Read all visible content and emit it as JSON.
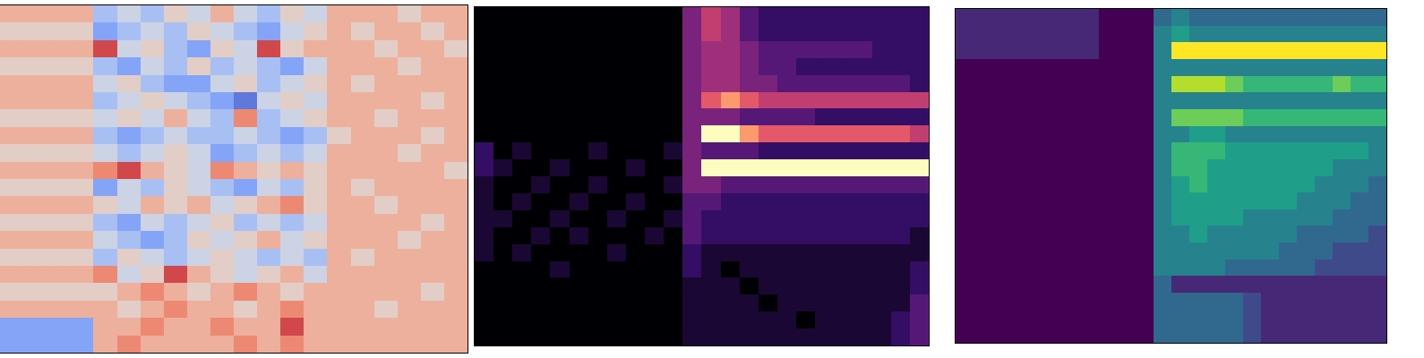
{
  "chart_data": [
    {
      "type": "heatmap",
      "color": "coolwarm",
      "grid": false,
      "tick_labels": false,
      "xlim": [
        -0.5,
        19.5
      ],
      "ylim": [
        19.5,
        -0.5
      ],
      "zlim": [
        0,
        9
      ],
      "z": [
        [
          6,
          6,
          6,
          6,
          3,
          4,
          3,
          5,
          4,
          6,
          4,
          3,
          5,
          4,
          6,
          6,
          6,
          5,
          6,
          6
        ],
        [
          5,
          5,
          5,
          5,
          2,
          3,
          4,
          3,
          5,
          4,
          3,
          2,
          4,
          5,
          6,
          5,
          6,
          6,
          5,
          6
        ],
        [
          6,
          6,
          6,
          6,
          8,
          4,
          5,
          3,
          2,
          5,
          4,
          8,
          5,
          6,
          6,
          6,
          5,
          6,
          6,
          5
        ],
        [
          5,
          5,
          5,
          5,
          3,
          2,
          4,
          3,
          5,
          3,
          4,
          3,
          2,
          4,
          6,
          6,
          6,
          5,
          6,
          6
        ],
        [
          6,
          6,
          6,
          6,
          4,
          5,
          3,
          2,
          2,
          4,
          5,
          3,
          4,
          5,
          6,
          5,
          6,
          6,
          6,
          6
        ],
        [
          6,
          6,
          6,
          6,
          3,
          4,
          5,
          4,
          3,
          2,
          1,
          4,
          5,
          4,
          6,
          6,
          6,
          6,
          5,
          6
        ],
        [
          5,
          5,
          5,
          5,
          4,
          5,
          4,
          6,
          4,
          3,
          7,
          3,
          4,
          5,
          6,
          6,
          5,
          6,
          6,
          6
        ],
        [
          6,
          6,
          6,
          6,
          3,
          2,
          3,
          4,
          3,
          3,
          4,
          3,
          2,
          3,
          5,
          6,
          6,
          6,
          5,
          6
        ],
        [
          5,
          5,
          5,
          5,
          4,
          3,
          4,
          5,
          4,
          2,
          3,
          4,
          3,
          4,
          6,
          6,
          6,
          5,
          6,
          6
        ],
        [
          6,
          6,
          6,
          6,
          7,
          8,
          6,
          5,
          4,
          7,
          6,
          5,
          6,
          5,
          6,
          6,
          6,
          6,
          6,
          5
        ],
        [
          5,
          5,
          5,
          5,
          2,
          4,
          3,
          5,
          4,
          3,
          2,
          4,
          3,
          5,
          6,
          5,
          6,
          6,
          6,
          6
        ],
        [
          6,
          6,
          6,
          6,
          5,
          4,
          6,
          5,
          6,
          4,
          5,
          6,
          7,
          5,
          6,
          6,
          5,
          6,
          6,
          6
        ],
        [
          5,
          5,
          5,
          5,
          3,
          2,
          4,
          3,
          4,
          5,
          3,
          4,
          3,
          4,
          6,
          6,
          6,
          6,
          5,
          6
        ],
        [
          6,
          6,
          6,
          6,
          4,
          3,
          2,
          3,
          5,
          4,
          5,
          6,
          4,
          5,
          6,
          6,
          6,
          5,
          6,
          6
        ],
        [
          5,
          5,
          5,
          5,
          3,
          5,
          4,
          3,
          4,
          5,
          4,
          3,
          4,
          3,
          6,
          5,
          6,
          6,
          6,
          6
        ],
        [
          6,
          6,
          6,
          6,
          7,
          4,
          5,
          8,
          6,
          5,
          4,
          5,
          6,
          4,
          6,
          6,
          6,
          6,
          6,
          6
        ],
        [
          5,
          5,
          5,
          5,
          5,
          6,
          7,
          6,
          5,
          6,
          7,
          6,
          5,
          6,
          6,
          6,
          6,
          6,
          5,
          6
        ],
        [
          6,
          6,
          6,
          6,
          6,
          5,
          6,
          7,
          6,
          6,
          5,
          6,
          7,
          6,
          6,
          6,
          5,
          6,
          6,
          6
        ],
        [
          2,
          2,
          2,
          2,
          6,
          6,
          7,
          6,
          6,
          7,
          6,
          6,
          8,
          6,
          6,
          6,
          6,
          6,
          6,
          6
        ],
        [
          2,
          2,
          2,
          2,
          6,
          7,
          6,
          6,
          6,
          6,
          7,
          6,
          7,
          6,
          6,
          6,
          6,
          6,
          6,
          6
        ]
      ]
    },
    {
      "type": "heatmap",
      "color": "magma",
      "grid": false,
      "tick_labels": false,
      "xlim": [
        -0.5,
        23.5
      ],
      "ylim": [
        19.5,
        -0.5
      ],
      "zlim": [
        0,
        9
      ],
      "z": [
        [
          0,
          0,
          0,
          0,
          0,
          0,
          0,
          0,
          0,
          0,
          0,
          4,
          6,
          5,
          3,
          2,
          2,
          2,
          2,
          2,
          2,
          2,
          2,
          2
        ],
        [
          0,
          0,
          0,
          0,
          0,
          0,
          0,
          0,
          0,
          0,
          0,
          4,
          6,
          5,
          3,
          2,
          2,
          2,
          2,
          2,
          2,
          2,
          2,
          2
        ],
        [
          0,
          0,
          0,
          0,
          0,
          0,
          0,
          0,
          0,
          0,
          0,
          4,
          5,
          5,
          4,
          3,
          3,
          3,
          3,
          3,
          3,
          2,
          2,
          2
        ],
        [
          0,
          0,
          0,
          0,
          0,
          0,
          0,
          0,
          0,
          0,
          0,
          4,
          5,
          5,
          4,
          3,
          3,
          2,
          2,
          2,
          2,
          2,
          2,
          2
        ],
        [
          0,
          0,
          0,
          0,
          0,
          0,
          0,
          0,
          0,
          0,
          0,
          4,
          5,
          5,
          4,
          4,
          3,
          3,
          3,
          3,
          3,
          3,
          3,
          2
        ],
        [
          0,
          0,
          0,
          0,
          0,
          0,
          0,
          0,
          0,
          0,
          0,
          4,
          7,
          8,
          7,
          6,
          6,
          6,
          6,
          6,
          6,
          6,
          6,
          6
        ],
        [
          0,
          0,
          0,
          0,
          0,
          0,
          0,
          0,
          0,
          0,
          0,
          4,
          4,
          4,
          3,
          3,
          3,
          3,
          2,
          2,
          2,
          2,
          2,
          2
        ],
        [
          0,
          0,
          0,
          0,
          0,
          0,
          0,
          0,
          0,
          0,
          0,
          4,
          9,
          9,
          8,
          7,
          7,
          7,
          7,
          7,
          7,
          7,
          7,
          6
        ],
        [
          2,
          0,
          1,
          0,
          0,
          0,
          1,
          0,
          0,
          0,
          1,
          4,
          3,
          3,
          3,
          2,
          2,
          2,
          2,
          2,
          2,
          2,
          2,
          2
        ],
        [
          2,
          1,
          0,
          0,
          1,
          0,
          0,
          0,
          1,
          0,
          0,
          4,
          9,
          9,
          9,
          9,
          9,
          9,
          9,
          9,
          9,
          9,
          9,
          9
        ],
        [
          1,
          0,
          0,
          1,
          0,
          0,
          1,
          0,
          0,
          0,
          1,
          4,
          4,
          3,
          3,
          3,
          3,
          3,
          3,
          3,
          3,
          3,
          3,
          3
        ],
        [
          1,
          0,
          1,
          0,
          0,
          1,
          0,
          0,
          1,
          0,
          0,
          3,
          3,
          2,
          2,
          2,
          2,
          2,
          2,
          2,
          2,
          2,
          2,
          2
        ],
        [
          1,
          1,
          0,
          0,
          1,
          0,
          0,
          1,
          0,
          0,
          1,
          3,
          2,
          2,
          2,
          2,
          2,
          2,
          2,
          2,
          2,
          2,
          2,
          2
        ],
        [
          1,
          0,
          0,
          1,
          0,
          1,
          0,
          0,
          0,
          1,
          0,
          3,
          2,
          2,
          2,
          2,
          2,
          2,
          2,
          2,
          2,
          2,
          2,
          1
        ],
        [
          1,
          0,
          1,
          0,
          0,
          0,
          0,
          1,
          0,
          0,
          0,
          2,
          1,
          1,
          1,
          1,
          1,
          1,
          1,
          1,
          1,
          1,
          1,
          1
        ],
        [
          0,
          0,
          0,
          0,
          1,
          0,
          0,
          0,
          0,
          0,
          0,
          2,
          1,
          0,
          1,
          1,
          1,
          1,
          1,
          1,
          1,
          1,
          1,
          2
        ],
        [
          0,
          0,
          0,
          0,
          0,
          0,
          0,
          0,
          0,
          0,
          0,
          1,
          1,
          1,
          0,
          1,
          1,
          1,
          1,
          1,
          1,
          1,
          1,
          2
        ],
        [
          0,
          0,
          0,
          0,
          0,
          0,
          0,
          0,
          0,
          0,
          0,
          1,
          1,
          1,
          1,
          0,
          1,
          1,
          1,
          1,
          1,
          1,
          1,
          3
        ],
        [
          0,
          0,
          0,
          0,
          0,
          0,
          0,
          0,
          0,
          0,
          0,
          1,
          1,
          1,
          1,
          1,
          1,
          0,
          1,
          1,
          1,
          1,
          2,
          3
        ],
        [
          0,
          0,
          0,
          0,
          0,
          0,
          0,
          0,
          0,
          0,
          0,
          1,
          1,
          1,
          1,
          1,
          1,
          1,
          1,
          1,
          1,
          1,
          2,
          3
        ]
      ]
    },
    {
      "type": "heatmap",
      "color": "viridis",
      "grid": false,
      "tick_labels": false,
      "xlim": [
        -0.5,
        23.5
      ],
      "ylim": [
        19.5,
        -0.5
      ],
      "zlim": [
        0,
        9
      ],
      "z": [
        [
          1,
          1,
          1,
          1,
          1,
          1,
          1,
          1,
          0,
          0,
          0,
          3,
          4,
          3,
          3,
          3,
          3,
          3,
          3,
          3,
          3,
          3,
          3,
          3
        ],
        [
          1,
          1,
          1,
          1,
          1,
          1,
          1,
          1,
          0,
          0,
          0,
          4,
          5,
          4,
          4,
          4,
          4,
          4,
          4,
          4,
          4,
          4,
          4,
          4
        ],
        [
          1,
          1,
          1,
          1,
          1,
          1,
          1,
          1,
          0,
          0,
          0,
          4,
          9,
          9,
          9,
          9,
          9,
          9,
          9,
          9,
          9,
          9,
          9,
          9
        ],
        [
          0,
          0,
          0,
          0,
          0,
          0,
          0,
          0,
          0,
          0,
          0,
          4,
          4,
          4,
          4,
          4,
          4,
          4,
          4,
          4,
          4,
          4,
          4,
          4
        ],
        [
          0,
          0,
          0,
          0,
          0,
          0,
          0,
          0,
          0,
          0,
          0,
          4,
          8,
          8,
          8,
          7,
          6,
          6,
          6,
          6,
          6,
          7,
          6,
          6
        ],
        [
          0,
          0,
          0,
          0,
          0,
          0,
          0,
          0,
          0,
          0,
          0,
          4,
          4,
          4,
          4,
          4,
          4,
          4,
          4,
          4,
          4,
          4,
          4,
          4
        ],
        [
          0,
          0,
          0,
          0,
          0,
          0,
          0,
          0,
          0,
          0,
          0,
          4,
          7,
          7,
          7,
          7,
          6,
          6,
          6,
          6,
          6,
          6,
          6,
          6
        ],
        [
          0,
          0,
          0,
          0,
          0,
          0,
          0,
          0,
          0,
          0,
          0,
          4,
          4,
          5,
          5,
          4,
          4,
          4,
          4,
          4,
          4,
          4,
          4,
          4
        ],
        [
          0,
          0,
          0,
          0,
          0,
          0,
          0,
          0,
          0,
          0,
          0,
          4,
          6,
          6,
          6,
          5,
          5,
          5,
          5,
          5,
          5,
          5,
          5,
          4
        ],
        [
          0,
          0,
          0,
          0,
          0,
          0,
          0,
          0,
          0,
          0,
          0,
          4,
          6,
          6,
          5,
          5,
          5,
          5,
          5,
          5,
          5,
          4,
          4,
          4
        ],
        [
          0,
          0,
          0,
          0,
          0,
          0,
          0,
          0,
          0,
          0,
          0,
          4,
          5,
          6,
          5,
          5,
          5,
          5,
          5,
          5,
          4,
          4,
          4,
          3
        ],
        [
          0,
          0,
          0,
          0,
          0,
          0,
          0,
          0,
          0,
          0,
          0,
          4,
          5,
          5,
          5,
          5,
          5,
          5,
          5,
          4,
          4,
          4,
          3,
          3
        ],
        [
          0,
          0,
          0,
          0,
          0,
          0,
          0,
          0,
          0,
          0,
          0,
          4,
          5,
          5,
          5,
          5,
          4,
          4,
          4,
          4,
          4,
          3,
          3,
          3
        ],
        [
          0,
          0,
          0,
          0,
          0,
          0,
          0,
          0,
          0,
          0,
          0,
          4,
          4,
          5,
          4,
          4,
          4,
          4,
          4,
          3,
          3,
          3,
          3,
          2
        ],
        [
          0,
          0,
          0,
          0,
          0,
          0,
          0,
          0,
          0,
          0,
          0,
          4,
          4,
          4,
          4,
          4,
          4,
          4,
          3,
          3,
          3,
          2,
          2,
          2
        ],
        [
          0,
          0,
          0,
          0,
          0,
          0,
          0,
          0,
          0,
          0,
          0,
          4,
          4,
          4,
          4,
          3,
          3,
          3,
          3,
          3,
          2,
          2,
          2,
          2
        ],
        [
          0,
          0,
          0,
          0,
          0,
          0,
          0,
          0,
          0,
          0,
          0,
          3,
          1,
          1,
          1,
          1,
          1,
          1,
          1,
          1,
          1,
          1,
          1,
          1
        ],
        [
          0,
          0,
          0,
          0,
          0,
          0,
          0,
          0,
          0,
          0,
          0,
          3,
          3,
          3,
          3,
          3,
          2,
          1,
          1,
          1,
          1,
          1,
          1,
          1
        ],
        [
          0,
          0,
          0,
          0,
          0,
          0,
          0,
          0,
          0,
          0,
          0,
          3,
          3,
          3,
          3,
          3,
          2,
          1,
          1,
          1,
          1,
          1,
          1,
          1
        ],
        [
          0,
          0,
          0,
          0,
          0,
          0,
          0,
          0,
          0,
          0,
          0,
          3,
          3,
          3,
          3,
          3,
          2,
          1,
          1,
          1,
          1,
          1,
          1,
          1
        ]
      ]
    }
  ]
}
